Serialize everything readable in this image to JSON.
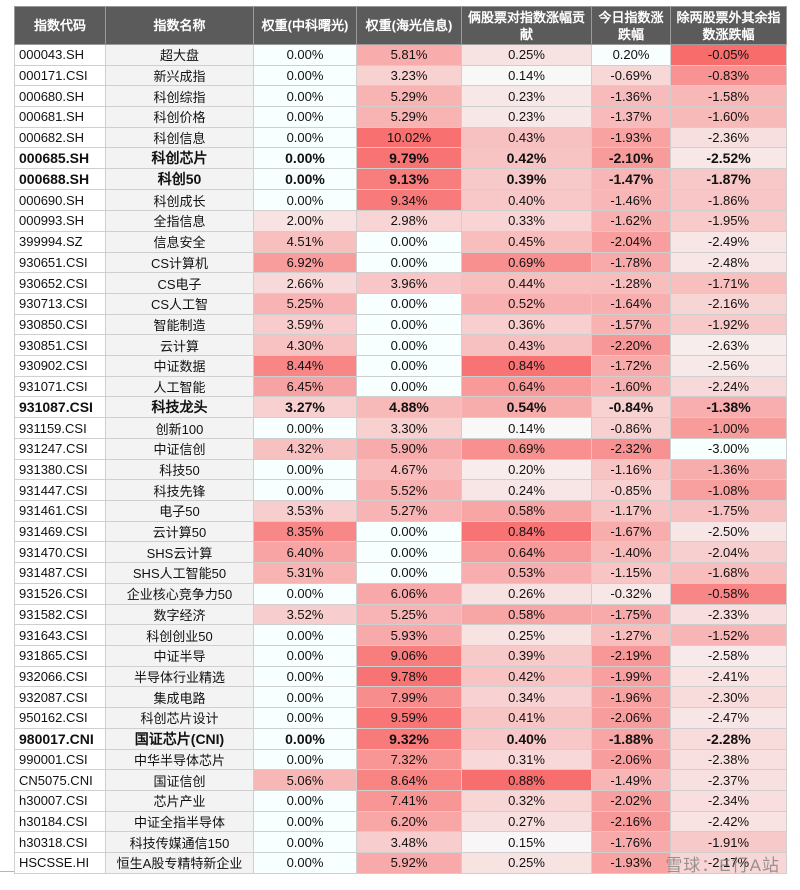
{
  "headers": [
    "指数代码",
    "指数名称",
    "权重(中科曙光)",
    "权重(海光信息)",
    "俩股票对指数涨幅贡献",
    "今日指数涨跌幅",
    "除两股票外其余指数涨跌幅"
  ],
  "rows": [
    {
      "code": "000043.SH",
      "name": "超大盘",
      "w1": "0.00%",
      "w2": "5.81%",
      "contrib": "0.25%",
      "chg": "0.20%",
      "other": "-0.05%",
      "bold": false
    },
    {
      "code": "000171.CSI",
      "name": "新兴成指",
      "w1": "0.00%",
      "w2": "3.23%",
      "contrib": "0.14%",
      "chg": "-0.69%",
      "other": "-0.83%",
      "bold": false
    },
    {
      "code": "000680.SH",
      "name": "科创综指",
      "w1": "0.00%",
      "w2": "5.29%",
      "contrib": "0.23%",
      "chg": "-1.36%",
      "other": "-1.58%",
      "bold": false
    },
    {
      "code": "000681.SH",
      "name": "科创价格",
      "w1": "0.00%",
      "w2": "5.29%",
      "contrib": "0.23%",
      "chg": "-1.37%",
      "other": "-1.60%",
      "bold": false
    },
    {
      "code": "000682.SH",
      "name": "科创信息",
      "w1": "0.00%",
      "w2": "10.02%",
      "contrib": "0.43%",
      "chg": "-1.93%",
      "other": "-2.36%",
      "bold": false
    },
    {
      "code": "000685.SH",
      "name": "科创芯片",
      "w1": "0.00%",
      "w2": "9.79%",
      "contrib": "0.42%",
      "chg": "-2.10%",
      "other": "-2.52%",
      "bold": true
    },
    {
      "code": "000688.SH",
      "name": "科创50",
      "w1": "0.00%",
      "w2": "9.13%",
      "contrib": "0.39%",
      "chg": "-1.47%",
      "other": "-1.87%",
      "bold": true
    },
    {
      "code": "000690.SH",
      "name": "科创成长",
      "w1": "0.00%",
      "w2": "9.34%",
      "contrib": "0.40%",
      "chg": "-1.46%",
      "other": "-1.86%",
      "bold": false
    },
    {
      "code": "000993.SH",
      "name": "全指信息",
      "w1": "2.00%",
      "w2": "2.98%",
      "contrib": "0.33%",
      "chg": "-1.62%",
      "other": "-1.95%",
      "bold": false
    },
    {
      "code": "399994.SZ",
      "name": "信息安全",
      "w1": "4.51%",
      "w2": "0.00%",
      "contrib": "0.45%",
      "chg": "-2.04%",
      "other": "-2.49%",
      "bold": false
    },
    {
      "code": "930651.CSI",
      "name": "CS计算机",
      "w1": "6.92%",
      "w2": "0.00%",
      "contrib": "0.69%",
      "chg": "-1.78%",
      "other": "-2.48%",
      "bold": false
    },
    {
      "code": "930652.CSI",
      "name": "CS电子",
      "w1": "2.66%",
      "w2": "3.96%",
      "contrib": "0.44%",
      "chg": "-1.28%",
      "other": "-1.71%",
      "bold": false
    },
    {
      "code": "930713.CSI",
      "name": "CS人工智",
      "w1": "5.25%",
      "w2": "0.00%",
      "contrib": "0.52%",
      "chg": "-1.64%",
      "other": "-2.16%",
      "bold": false
    },
    {
      "code": "930850.CSI",
      "name": "智能制造",
      "w1": "3.59%",
      "w2": "0.00%",
      "contrib": "0.36%",
      "chg": "-1.57%",
      "other": "-1.92%",
      "bold": false
    },
    {
      "code": "930851.CSI",
      "name": "云计算",
      "w1": "4.30%",
      "w2": "0.00%",
      "contrib": "0.43%",
      "chg": "-2.20%",
      "other": "-2.63%",
      "bold": false
    },
    {
      "code": "930902.CSI",
      "name": "中证数据",
      "w1": "8.44%",
      "w2": "0.00%",
      "contrib": "0.84%",
      "chg": "-1.72%",
      "other": "-2.56%",
      "bold": false
    },
    {
      "code": "931071.CSI",
      "name": "人工智能",
      "w1": "6.45%",
      "w2": "0.00%",
      "contrib": "0.64%",
      "chg": "-1.60%",
      "other": "-2.24%",
      "bold": false
    },
    {
      "code": "931087.CSI",
      "name": "科技龙头",
      "w1": "3.27%",
      "w2": "4.88%",
      "contrib": "0.54%",
      "chg": "-0.84%",
      "other": "-1.38%",
      "bold": true
    },
    {
      "code": "931159.CSI",
      "name": "创新100",
      "w1": "0.00%",
      "w2": "3.30%",
      "contrib": "0.14%",
      "chg": "-0.86%",
      "other": "-1.00%",
      "bold": false
    },
    {
      "code": "931247.CSI",
      "name": "中证信创",
      "w1": "4.32%",
      "w2": "5.90%",
      "contrib": "0.69%",
      "chg": "-2.32%",
      "other": "-3.00%",
      "bold": false
    },
    {
      "code": "931380.CSI",
      "name": "科技50",
      "w1": "0.00%",
      "w2": "4.67%",
      "contrib": "0.20%",
      "chg": "-1.16%",
      "other": "-1.36%",
      "bold": false
    },
    {
      "code": "931447.CSI",
      "name": "科技先锋",
      "w1": "0.00%",
      "w2": "5.52%",
      "contrib": "0.24%",
      "chg": "-0.85%",
      "other": "-1.08%",
      "bold": false
    },
    {
      "code": "931461.CSI",
      "name": "电子50",
      "w1": "3.53%",
      "w2": "5.27%",
      "contrib": "0.58%",
      "chg": "-1.17%",
      "other": "-1.75%",
      "bold": false
    },
    {
      "code": "931469.CSI",
      "name": "云计算50",
      "w1": "8.35%",
      "w2": "0.00%",
      "contrib": "0.84%",
      "chg": "-1.67%",
      "other": "-2.50%",
      "bold": false
    },
    {
      "code": "931470.CSI",
      "name": "SHS云计算",
      "w1": "6.40%",
      "w2": "0.00%",
      "contrib": "0.64%",
      "chg": "-1.40%",
      "other": "-2.04%",
      "bold": false
    },
    {
      "code": "931487.CSI",
      "name": "SHS人工智能50",
      "w1": "5.31%",
      "w2": "0.00%",
      "contrib": "0.53%",
      "chg": "-1.15%",
      "other": "-1.68%",
      "bold": false
    },
    {
      "code": "931526.CSI",
      "name": "企业核心竞争力50",
      "w1": "0.00%",
      "w2": "6.06%",
      "contrib": "0.26%",
      "chg": "-0.32%",
      "other": "-0.58%",
      "bold": false
    },
    {
      "code": "931582.CSI",
      "name": "数字经济",
      "w1": "3.52%",
      "w2": "5.25%",
      "contrib": "0.58%",
      "chg": "-1.75%",
      "other": "-2.33%",
      "bold": false
    },
    {
      "code": "931643.CSI",
      "name": "科创创业50",
      "w1": "0.00%",
      "w2": "5.93%",
      "contrib": "0.25%",
      "chg": "-1.27%",
      "other": "-1.52%",
      "bold": false
    },
    {
      "code": "931865.CSI",
      "name": "中证半导",
      "w1": "0.00%",
      "w2": "9.06%",
      "contrib": "0.39%",
      "chg": "-2.19%",
      "other": "-2.58%",
      "bold": false
    },
    {
      "code": "932066.CSI",
      "name": "半导体行业精选",
      "w1": "0.00%",
      "w2": "9.78%",
      "contrib": "0.42%",
      "chg": "-1.99%",
      "other": "-2.41%",
      "bold": false
    },
    {
      "code": "932087.CSI",
      "name": "集成电路",
      "w1": "0.00%",
      "w2": "7.99%",
      "contrib": "0.34%",
      "chg": "-1.96%",
      "other": "-2.30%",
      "bold": false
    },
    {
      "code": "950162.CSI",
      "name": "科创芯片设计",
      "w1": "0.00%",
      "w2": "9.59%",
      "contrib": "0.41%",
      "chg": "-2.06%",
      "other": "-2.47%",
      "bold": false
    },
    {
      "code": "980017.CNI",
      "name": "国证芯片(CNI)",
      "w1": "0.00%",
      "w2": "9.32%",
      "contrib": "0.40%",
      "chg": "-1.88%",
      "other": "-2.28%",
      "bold": true
    },
    {
      "code": "990001.CSI",
      "name": "中华半导体芯片",
      "w1": "0.00%",
      "w2": "7.32%",
      "contrib": "0.31%",
      "chg": "-2.06%",
      "other": "-2.38%",
      "bold": false
    },
    {
      "code": "CN5075.CNI",
      "name": "国证信创",
      "w1": "5.06%",
      "w2": "8.64%",
      "contrib": "0.88%",
      "chg": "-1.49%",
      "other": "-2.37%",
      "bold": false
    },
    {
      "code": "h30007.CSI",
      "name": "芯片产业",
      "w1": "0.00%",
      "w2": "7.41%",
      "contrib": "0.32%",
      "chg": "-2.02%",
      "other": "-2.34%",
      "bold": false
    },
    {
      "code": "h30184.CSI",
      "name": "中证全指半导体",
      "w1": "0.00%",
      "w2": "6.20%",
      "contrib": "0.27%",
      "chg": "-2.16%",
      "other": "-2.42%",
      "bold": false
    },
    {
      "code": "h30318.CSI",
      "name": "科技传媒通信150",
      "w1": "0.00%",
      "w2": "3.48%",
      "contrib": "0.15%",
      "chg": "-1.76%",
      "other": "-1.91%",
      "bold": false
    },
    {
      "code": "HSCSSE.HI",
      "name": "恒生A股专精特新企业",
      "w1": "0.00%",
      "w2": "5.92%",
      "contrib": "0.25%",
      "chg": "-1.93%",
      "other": "-2.17%",
      "bold": false
    }
  ],
  "watermark": "雪球：E行A站"
}
